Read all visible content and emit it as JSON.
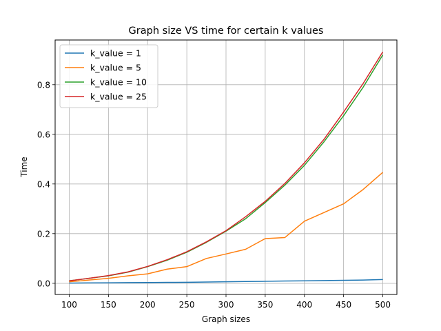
{
  "chart_data": {
    "type": "line",
    "title": "Graph size VS time for certain k values",
    "xlabel": "Graph sizes",
    "ylabel": "Time",
    "xlim": [
      82,
      518
    ],
    "ylim": [
      -0.045,
      0.98
    ],
    "xticks": [
      100,
      150,
      200,
      250,
      300,
      350,
      400,
      450,
      500
    ],
    "yticks": [
      0.0,
      0.2,
      0.4,
      0.6,
      0.8
    ],
    "ytick_labels": [
      "0.0",
      "0.2",
      "0.4",
      "0.6",
      "0.8"
    ],
    "grid": true,
    "legend_position": "upper-left",
    "x": [
      100,
      125,
      150,
      175,
      200,
      225,
      250,
      275,
      300,
      325,
      350,
      375,
      400,
      425,
      450,
      475,
      500
    ],
    "series": [
      {
        "name": "k_value = 1",
        "color": "#1f77b4",
        "values": [
          0.001,
          0.0015,
          0.002,
          0.0025,
          0.003,
          0.0035,
          0.004,
          0.005,
          0.006,
          0.007,
          0.008,
          0.009,
          0.01,
          0.011,
          0.012,
          0.013,
          0.015
        ]
      },
      {
        "name": "k_value = 5",
        "color": "#ff7f0e",
        "values": [
          0.006,
          0.013,
          0.02,
          0.03,
          0.038,
          0.057,
          0.067,
          0.1,
          0.118,
          0.137,
          0.18,
          0.184,
          0.25,
          0.285,
          0.32,
          0.378,
          0.447
        ]
      },
      {
        "name": "k_value = 10",
        "color": "#2ca02c",
        "values": [
          0.01,
          0.02,
          0.03,
          0.045,
          0.067,
          0.093,
          0.125,
          0.165,
          0.21,
          0.26,
          0.325,
          0.395,
          0.475,
          0.57,
          0.675,
          0.79,
          0.92
        ]
      },
      {
        "name": "k_value = 25",
        "color": "#d62728",
        "values": [
          0.01,
          0.02,
          0.031,
          0.046,
          0.068,
          0.095,
          0.127,
          0.167,
          0.212,
          0.268,
          0.33,
          0.402,
          0.485,
          0.58,
          0.69,
          0.805,
          0.932
        ]
      }
    ]
  }
}
